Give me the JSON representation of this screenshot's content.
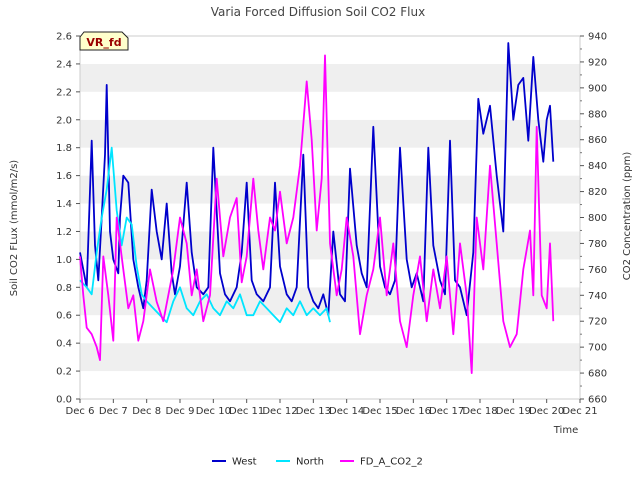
{
  "chart_data": {
    "type": "line",
    "title": "Varia Forced Diffusion Soil CO2 Flux",
    "xlabel": "Time",
    "ylabel": "Soil CO2 FLux (mmol/m2/s)",
    "y2label": "CO2 Concentration (ppm)",
    "badge": "VR_fd",
    "x_ticks": [
      "Dec 6",
      "Dec 7",
      "Dec 8",
      "Dec 9",
      "Dec 10",
      "Dec 11",
      "Dec 12",
      "Dec 13",
      "Dec 14",
      "Dec 15",
      "Dec 16",
      "Dec 17",
      "Dec 18",
      "Dec 19",
      "Dec 20",
      "Dec 21"
    ],
    "xlim": [
      0,
      15
    ],
    "ylim": [
      0,
      2.6
    ],
    "y_ticks": [
      "0.0",
      "0.2",
      "0.4",
      "0.6",
      "0.8",
      "1.0",
      "1.2",
      "1.4",
      "1.6",
      "1.8",
      "2.0",
      "2.2",
      "2.4",
      "2.6"
    ],
    "y2lim": [
      660,
      940
    ],
    "y2_ticks": [
      "660",
      "680",
      "700",
      "720",
      "740",
      "760",
      "780",
      "800",
      "820",
      "840",
      "860",
      "880",
      "900",
      "920",
      "940"
    ],
    "grid": "horizontal alternating bands",
    "legend_position": "bottom",
    "series": [
      {
        "name": "West",
        "color": "#0000cc",
        "axis": "left",
        "x": [
          0.0,
          0.2,
          0.35,
          0.45,
          0.55,
          0.65,
          0.75,
          0.8,
          0.9,
          1.0,
          1.15,
          1.2,
          1.3,
          1.45,
          1.6,
          1.75,
          1.9,
          2.0,
          2.15,
          2.3,
          2.45,
          2.6,
          2.75,
          2.85,
          3.0,
          3.2,
          3.35,
          3.5,
          3.7,
          3.85,
          4.0,
          4.2,
          4.35,
          4.5,
          4.7,
          4.85,
          5.0,
          5.15,
          5.3,
          5.5,
          5.7,
          5.85,
          6.0,
          6.2,
          6.35,
          6.5,
          6.7,
          6.85,
          7.0,
          7.15,
          7.3,
          7.45,
          7.6,
          7.8,
          7.95,
          8.1,
          8.3,
          8.45,
          8.6,
          8.8,
          9.0,
          9.15,
          9.3,
          9.45,
          9.6,
          9.8,
          9.95,
          10.1,
          10.3,
          10.45,
          10.6,
          10.8,
          10.95,
          11.1,
          11.25,
          11.4,
          11.6,
          11.8,
          11.95,
          12.1,
          12.3,
          12.5,
          12.7,
          12.85,
          13.0,
          13.15,
          13.3,
          13.45,
          13.6,
          13.75,
          13.9,
          14.0,
          14.1,
          14.2
        ],
        "values": [
          1.05,
          0.8,
          1.85,
          1.1,
          0.85,
          1.3,
          1.75,
          2.25,
          1.2,
          1.0,
          0.9,
          1.3,
          1.6,
          1.55,
          1.0,
          0.8,
          0.65,
          0.85,
          1.5,
          1.2,
          1.0,
          1.4,
          0.9,
          0.75,
          0.95,
          1.55,
          1.05,
          0.8,
          0.75,
          0.8,
          1.8,
          0.9,
          0.75,
          0.7,
          0.8,
          1.05,
          1.55,
          0.85,
          0.75,
          0.7,
          0.8,
          1.55,
          0.95,
          0.75,
          0.7,
          0.8,
          1.75,
          0.8,
          0.7,
          0.65,
          0.75,
          0.6,
          1.2,
          0.75,
          0.7,
          1.65,
          1.1,
          0.9,
          0.8,
          1.95,
          0.95,
          0.8,
          0.75,
          0.85,
          1.8,
          1.0,
          0.8,
          0.9,
          0.7,
          1.8,
          1.1,
          0.85,
          0.75,
          1.85,
          0.85,
          0.8,
          0.6,
          1.05,
          2.15,
          1.9,
          2.1,
          1.6,
          1.2,
          2.55,
          2.0,
          2.25,
          2.3,
          1.85,
          2.45,
          2.0,
          1.7,
          2.0,
          2.1,
          1.7
        ]
      },
      {
        "name": "North",
        "color": "#00e5ff",
        "axis": "left",
        "x": [
          0.0,
          0.2,
          0.35,
          0.5,
          0.65,
          0.8,
          0.95,
          1.1,
          1.25,
          1.4,
          1.55,
          1.7,
          1.85,
          2.0,
          2.2,
          2.4,
          2.6,
          2.8,
          3.0,
          3.2,
          3.4,
          3.6,
          3.8,
          4.0,
          4.2,
          4.4,
          4.6,
          4.8,
          5.0,
          5.2,
          5.4,
          5.6,
          5.8,
          6.0,
          6.2,
          6.4,
          6.6,
          6.8,
          7.0,
          7.2,
          7.4,
          7.5
        ],
        "values": [
          0.85,
          0.8,
          0.75,
          1.05,
          1.3,
          1.5,
          1.8,
          1.35,
          1.1,
          1.3,
          1.25,
          0.95,
          0.75,
          0.7,
          0.65,
          0.6,
          0.55,
          0.7,
          0.8,
          0.65,
          0.6,
          0.7,
          0.75,
          0.65,
          0.6,
          0.7,
          0.65,
          0.75,
          0.6,
          0.6,
          0.7,
          0.65,
          0.6,
          0.55,
          0.65,
          0.6,
          0.7,
          0.6,
          0.65,
          0.6,
          0.65,
          0.55
        ]
      },
      {
        "name": "FD_A_CO2_2",
        "color": "#ff00ff",
        "axis": "right",
        "x": [
          0.0,
          0.1,
          0.2,
          0.35,
          0.5,
          0.6,
          0.7,
          0.85,
          1.0,
          1.1,
          1.3,
          1.45,
          1.6,
          1.75,
          1.9,
          2.1,
          2.3,
          2.5,
          2.65,
          2.8,
          3.0,
          3.2,
          3.35,
          3.5,
          3.7,
          3.9,
          4.1,
          4.3,
          4.5,
          4.7,
          4.85,
          5.0,
          5.2,
          5.35,
          5.5,
          5.7,
          5.85,
          6.0,
          6.2,
          6.4,
          6.6,
          6.8,
          6.95,
          7.1,
          7.25,
          7.35,
          7.5,
          7.7,
          7.85,
          8.0,
          8.2,
          8.4,
          8.6,
          8.8,
          9.0,
          9.2,
          9.4,
          9.6,
          9.8,
          10.0,
          10.2,
          10.4,
          10.6,
          10.8,
          11.0,
          11.2,
          11.4,
          11.6,
          11.75,
          11.9,
          12.1,
          12.3,
          12.5,
          12.7,
          12.9,
          13.1,
          13.3,
          13.5,
          13.6,
          13.7,
          13.85,
          14.0,
          14.1,
          14.2
        ],
        "values": [
          770,
          740,
          715,
          710,
          700,
          690,
          770,
          740,
          705,
          800,
          760,
          730,
          740,
          705,
          720,
          760,
          735,
          720,
          740,
          760,
          800,
          780,
          740,
          760,
          720,
          740,
          830,
          770,
          800,
          815,
          750,
          770,
          830,
          790,
          760,
          800,
          790,
          820,
          780,
          800,
          840,
          905,
          860,
          790,
          830,
          925,
          780,
          740,
          760,
          800,
          770,
          710,
          740,
          760,
          800,
          740,
          780,
          720,
          700,
          740,
          770,
          720,
          760,
          730,
          770,
          710,
          780,
          740,
          680,
          800,
          760,
          840,
          780,
          720,
          700,
          710,
          760,
          790,
          740,
          870,
          740,
          730,
          780,
          720
        ]
      }
    ]
  }
}
